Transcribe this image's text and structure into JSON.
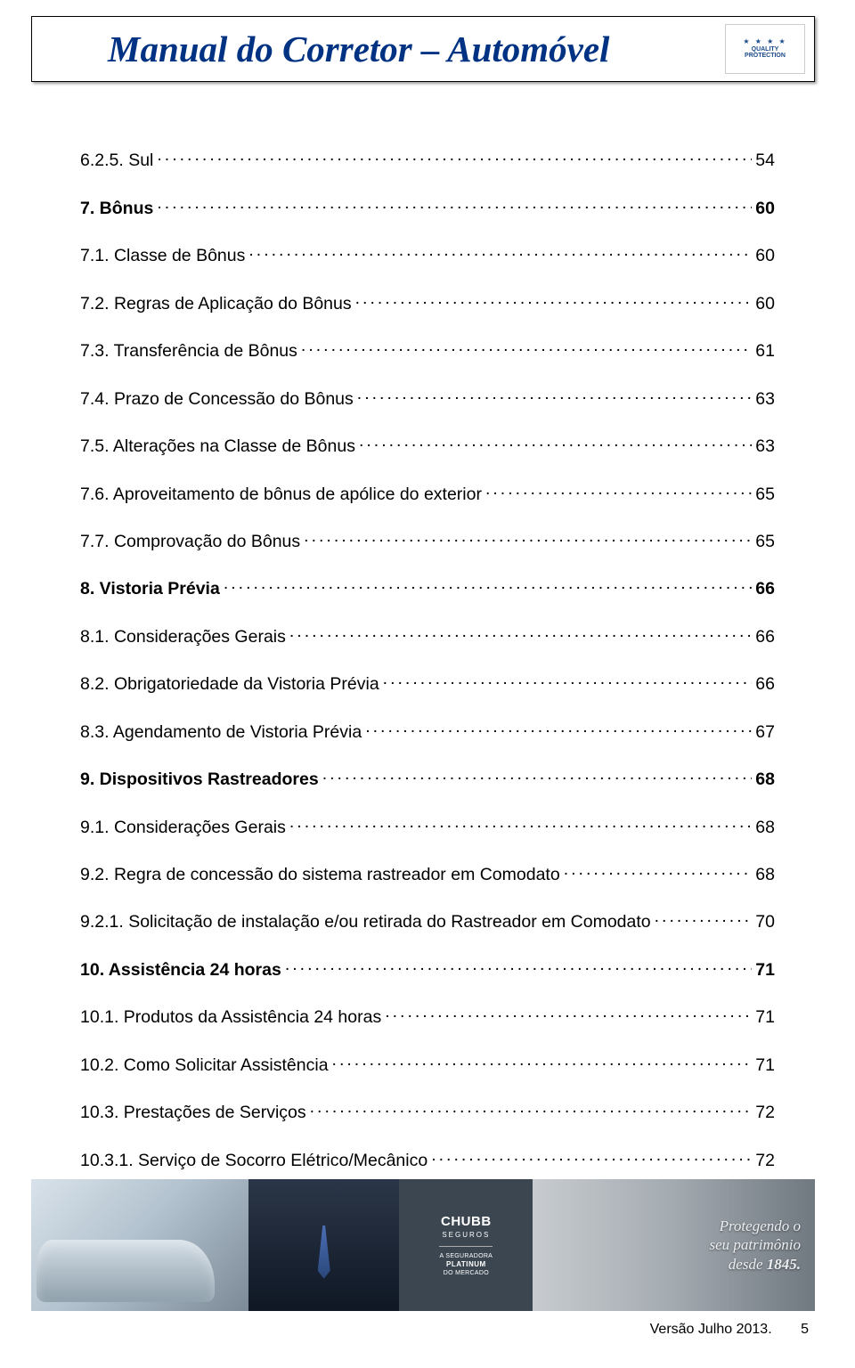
{
  "header": {
    "title": "Manual do Corretor – Automóvel",
    "logo_brand": "QUALITY",
    "logo_sub": "PROTECTION"
  },
  "toc": [
    {
      "label": "6.2.5. Sul",
      "page": "54",
      "bold": false
    },
    {
      "label": "7. Bônus",
      "page": "60",
      "bold": true
    },
    {
      "label": "7.1. Classe de Bônus",
      "page": "60",
      "bold": false
    },
    {
      "label": "7.2. Regras de Aplicação do Bônus",
      "page": "60",
      "bold": false
    },
    {
      "label": "7.3. Transferência de Bônus",
      "page": "61",
      "bold": false
    },
    {
      "label": "7.4. Prazo de Concessão do Bônus",
      "page": "63",
      "bold": false
    },
    {
      "label": "7.5. Alterações na Classe de Bônus",
      "page": "63",
      "bold": false
    },
    {
      "label": "7.6. Aproveitamento de bônus de apólice do exterior",
      "page": "65",
      "bold": false
    },
    {
      "label": "7.7. Comprovação do Bônus",
      "page": "65",
      "bold": false
    },
    {
      "label": "8. Vistoria Prévia",
      "page": "66",
      "bold": true
    },
    {
      "label": "8.1. Considerações Gerais",
      "page": "66",
      "bold": false
    },
    {
      "label": "8.2. Obrigatoriedade da Vistoria Prévia",
      "page": "66",
      "bold": false
    },
    {
      "label": "8.3. Agendamento de Vistoria Prévia",
      "page": "67",
      "bold": false
    },
    {
      "label": "9. Dispositivos Rastreadores",
      "page": "68",
      "bold": true
    },
    {
      "label": "9.1. Considerações Gerais",
      "page": "68",
      "bold": false
    },
    {
      "label": "9.2. Regra de concessão do sistema rastreador em Comodato",
      "page": "68",
      "bold": false
    },
    {
      "label": "9.2.1. Solicitação de instalação e/ou retirada do Rastreador em Comodato",
      "page": "70",
      "bold": false
    },
    {
      "label": "10. Assistência 24 horas",
      "page": "71",
      "bold": true
    },
    {
      "label": "10.1. Produtos da Assistência 24 horas",
      "page": "71",
      "bold": false
    },
    {
      "label": "10.2. Como Solicitar Assistência",
      "page": "71",
      "bold": false
    },
    {
      "label": "10.3. Prestações de Serviços",
      "page": "72",
      "bold": false
    },
    {
      "label": "10.3.1. Serviço de Socorro Elétrico/Mecânico",
      "page": "72",
      "bold": false
    }
  ],
  "banner": {
    "chubb_main": "CHUBB",
    "chubb_sub": "SEGUROS",
    "plat_line1": "A SEGURADORA",
    "plat_bold": "PLATINUM",
    "plat_line2": "DO MERCADO",
    "slogan_l1": "Protegendo o",
    "slogan_l2": "seu patrimônio",
    "slogan_l3_prefix": "desde ",
    "slogan_year": "1845."
  },
  "footer": {
    "version": "Versão Julho 2013.",
    "page": "5"
  },
  "colors": {
    "title_color": "#003283",
    "text_color": "#000000",
    "banner_dark": "#3b4650"
  }
}
